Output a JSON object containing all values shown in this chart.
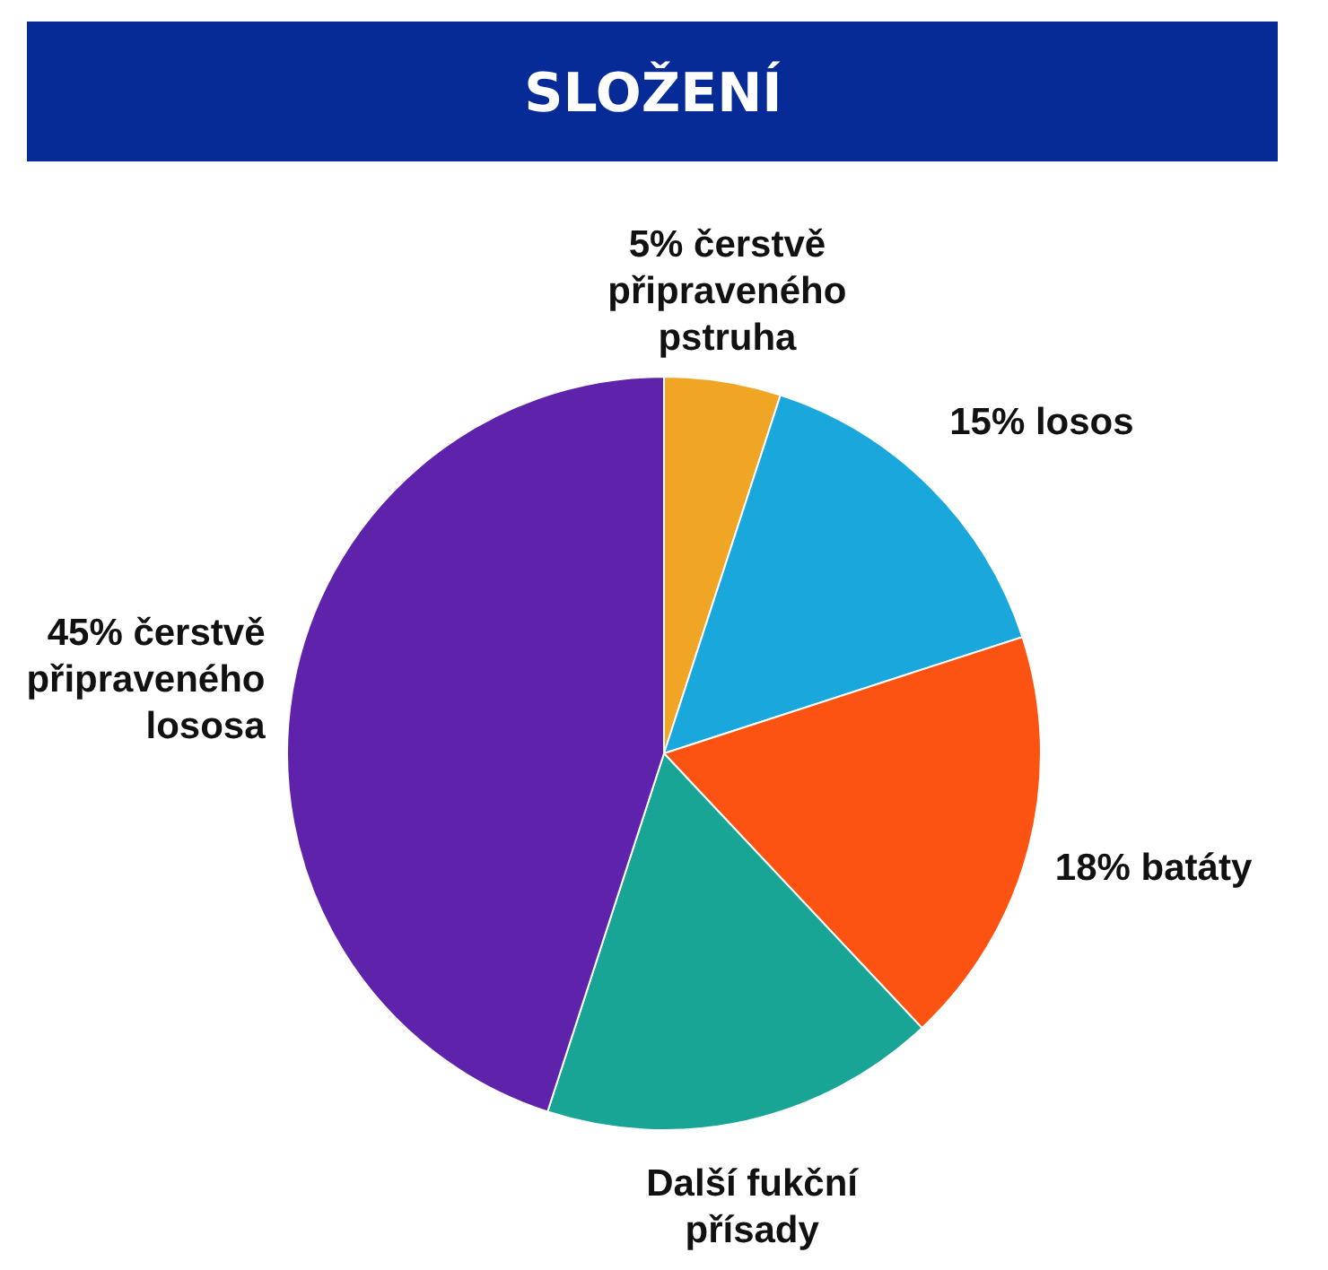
{
  "chart_data": {
    "type": "pie",
    "title": "SLOŽENÍ",
    "categories": [
      "čerstvě připraveného pstruha",
      "losos",
      "batáty",
      "Další fukční přísady",
      "čerstvě připraveného lososa"
    ],
    "values": [
      5,
      15,
      18,
      17,
      45
    ],
    "value_labels": [
      "5%",
      "15%",
      "18%",
      null,
      "45%"
    ],
    "colors": [
      "#f0a524",
      "#1aa7dc",
      "#fc5312",
      "#18a596",
      "#5f23ab"
    ]
  }
}
